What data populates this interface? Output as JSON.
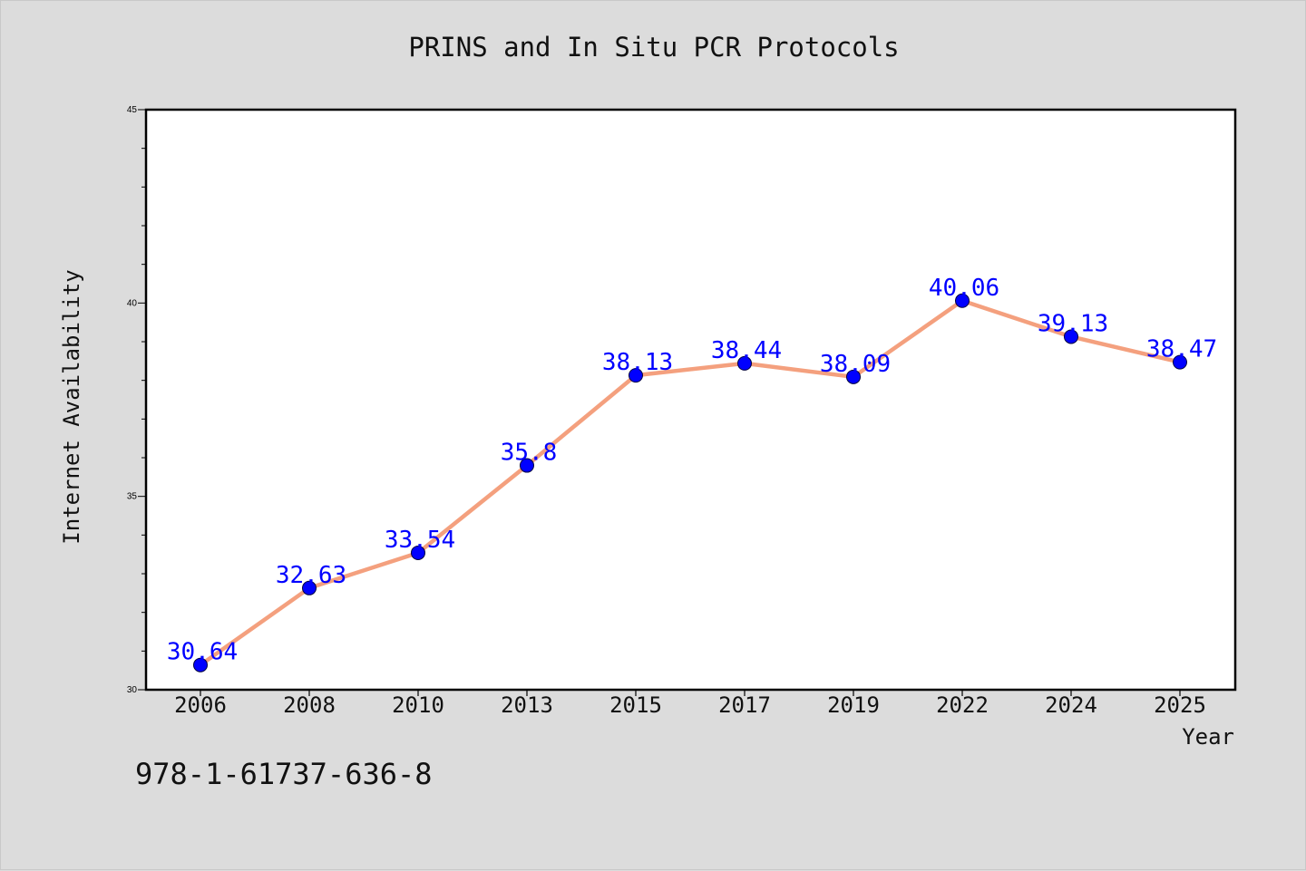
{
  "chart_data": {
    "type": "line",
    "title": "PRINS and In Situ PCR Protocols",
    "xlabel": "Year",
    "ylabel": "Internet Availability",
    "categories": [
      "2006",
      "2008",
      "2010",
      "2013",
      "2015",
      "2017",
      "2019",
      "2022",
      "2024",
      "2025"
    ],
    "series": [
      {
        "values": [
          30.64,
          32.63,
          33.54,
          35.8,
          38.13,
          38.44,
          38.09,
          40.06,
          39.13,
          38.47
        ],
        "data_labels": [
          "30.64",
          "32.63",
          "33.54",
          "35.8",
          "38.13",
          "38.44",
          "38.09",
          "40.06",
          "39.13",
          "38.47"
        ]
      }
    ],
    "ylim": [
      30,
      45
    ],
    "yticks_major": [
      30,
      35,
      40,
      45
    ],
    "yticks_minor": [
      31,
      32,
      33,
      34,
      36,
      37,
      38,
      39,
      41,
      42,
      43,
      44
    ],
    "ytick_labels": [
      "30",
      "35",
      "40",
      "45"
    ],
    "grid": false,
    "legend": "none",
    "colors": {
      "line": "#f4a07e",
      "marker": "#0000ff",
      "data_label": "#0000ff",
      "background": "#dcdcdc",
      "plot_area": "#ffffff"
    }
  },
  "footer": {
    "isbn": "978-1-61737-636-8"
  }
}
